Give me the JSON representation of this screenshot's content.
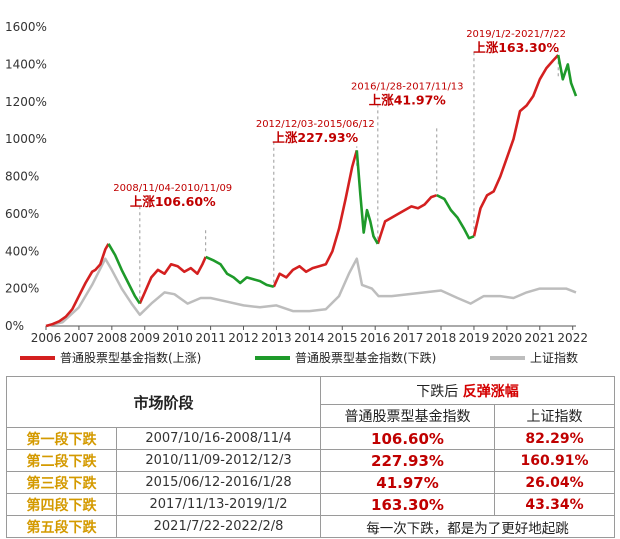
{
  "chart_data": {
    "type": "line",
    "x_ticks": [
      "2006",
      "2007",
      "2008",
      "2009",
      "2010",
      "2011",
      "2012",
      "2013",
      "2014",
      "2015",
      "2016",
      "2017",
      "2018",
      "2019",
      "2020",
      "2021",
      "2022"
    ],
    "y_ticks": [
      "0%",
      "200%",
      "400%",
      "600%",
      "800%",
      "1000%",
      "1200%",
      "1400%",
      "1600%"
    ],
    "ylim": [
      0,
      1600
    ],
    "xlim": [
      2006,
      2022.1
    ],
    "colors": {
      "rise": "#d42020",
      "fall": "#1e9a2a",
      "sh": "#bdbdbd"
    },
    "series": [
      {
        "name": "普通股票型基金指数(上涨)",
        "segments": [
          [
            [
              2006.0,
              0
            ],
            [
              2006.2,
              10
            ],
            [
              2006.4,
              25
            ],
            [
              2006.6,
              50
            ],
            [
              2006.8,
              90
            ],
            [
              2007.0,
              160
            ],
            [
              2007.2,
              230
            ],
            [
              2007.4,
              290
            ],
            [
              2007.5,
              300
            ],
            [
              2007.65,
              330
            ],
            [
              2007.8,
              410
            ],
            [
              2007.9,
              440
            ]
          ],
          [
            [
              2008.85,
              120
            ],
            [
              2009.0,
              180
            ],
            [
              2009.2,
              260
            ],
            [
              2009.4,
              300
            ],
            [
              2009.6,
              280
            ],
            [
              2009.8,
              330
            ],
            [
              2010.0,
              320
            ],
            [
              2010.2,
              290
            ],
            [
              2010.4,
              310
            ],
            [
              2010.6,
              280
            ],
            [
              2010.75,
              330
            ],
            [
              2010.85,
              370
            ]
          ],
          [
            [
              2012.92,
              210
            ],
            [
              2013.1,
              280
            ],
            [
              2013.3,
              260
            ],
            [
              2013.5,
              300
            ],
            [
              2013.7,
              320
            ],
            [
              2013.9,
              290
            ],
            [
              2014.1,
              310
            ],
            [
              2014.3,
              320
            ],
            [
              2014.5,
              330
            ],
            [
              2014.7,
              400
            ],
            [
              2014.9,
              520
            ],
            [
              2015.1,
              680
            ],
            [
              2015.3,
              850
            ],
            [
              2015.44,
              940
            ]
          ],
          [
            [
              2016.08,
              440
            ],
            [
              2016.3,
              560
            ],
            [
              2016.5,
              580
            ],
            [
              2016.7,
              600
            ],
            [
              2016.9,
              620
            ],
            [
              2017.1,
              640
            ],
            [
              2017.3,
              630
            ],
            [
              2017.5,
              650
            ],
            [
              2017.7,
              690
            ],
            [
              2017.87,
              700
            ]
          ],
          [
            [
              2019.0,
              480
            ],
            [
              2019.2,
              630
            ],
            [
              2019.4,
              700
            ],
            [
              2019.6,
              720
            ],
            [
              2019.8,
              800
            ],
            [
              2020.0,
              900
            ],
            [
              2020.2,
              1000
            ],
            [
              2020.4,
              1150
            ],
            [
              2020.6,
              1180
            ],
            [
              2020.8,
              1230
            ],
            [
              2021.0,
              1320
            ],
            [
              2021.2,
              1380
            ],
            [
              2021.4,
              1420
            ],
            [
              2021.56,
              1450
            ]
          ]
        ]
      },
      {
        "name": "普通股票型基金指数(下跌)",
        "segments": [
          [
            [
              2007.9,
              440
            ],
            [
              2008.1,
              380
            ],
            [
              2008.3,
              300
            ],
            [
              2008.5,
              230
            ],
            [
              2008.7,
              160
            ],
            [
              2008.85,
              120
            ]
          ],
          [
            [
              2010.85,
              370
            ],
            [
              2011.1,
              350
            ],
            [
              2011.3,
              330
            ],
            [
              2011.5,
              280
            ],
            [
              2011.7,
              260
            ],
            [
              2011.9,
              230
            ],
            [
              2012.1,
              260
            ],
            [
              2012.3,
              250
            ],
            [
              2012.5,
              240
            ],
            [
              2012.7,
              220
            ],
            [
              2012.92,
              210
            ]
          ],
          [
            [
              2015.44,
              940
            ],
            [
              2015.55,
              700
            ],
            [
              2015.65,
              500
            ],
            [
              2015.75,
              620
            ],
            [
              2015.85,
              560
            ],
            [
              2015.95,
              480
            ],
            [
              2016.08,
              440
            ]
          ],
          [
            [
              2017.87,
              700
            ],
            [
              2018.1,
              680
            ],
            [
              2018.3,
              620
            ],
            [
              2018.5,
              580
            ],
            [
              2018.7,
              520
            ],
            [
              2018.85,
              470
            ],
            [
              2019.0,
              480
            ]
          ],
          [
            [
              2021.56,
              1450
            ],
            [
              2021.7,
              1320
            ],
            [
              2021.85,
              1400
            ],
            [
              2021.95,
              1300
            ],
            [
              2022.1,
              1230
            ]
          ]
        ]
      },
      {
        "name": "上证指数",
        "segments": [
          [
            [
              2006.0,
              0
            ],
            [
              2006.5,
              20
            ],
            [
              2007.0,
              100
            ],
            [
              2007.4,
              220
            ],
            [
              2007.8,
              360
            ],
            [
              2008.0,
              300
            ],
            [
              2008.3,
              200
            ],
            [
              2008.6,
              120
            ],
            [
              2008.85,
              60
            ],
            [
              2009.2,
              120
            ],
            [
              2009.6,
              180
            ],
            [
              2009.9,
              170
            ],
            [
              2010.3,
              120
            ],
            [
              2010.7,
              150
            ],
            [
              2011.0,
              150
            ],
            [
              2011.5,
              130
            ],
            [
              2012.0,
              110
            ],
            [
              2012.5,
              100
            ],
            [
              2013.0,
              110
            ],
            [
              2013.5,
              80
            ],
            [
              2014.0,
              80
            ],
            [
              2014.5,
              90
            ],
            [
              2014.9,
              160
            ],
            [
              2015.2,
              280
            ],
            [
              2015.44,
              360
            ],
            [
              2015.6,
              220
            ],
            [
              2015.9,
              200
            ],
            [
              2016.1,
              160
            ],
            [
              2016.5,
              160
            ],
            [
              2017.0,
              170
            ],
            [
              2017.5,
              180
            ],
            [
              2018.0,
              190
            ],
            [
              2018.5,
              150
            ],
            [
              2018.9,
              120
            ],
            [
              2019.3,
              160
            ],
            [
              2019.8,
              160
            ],
            [
              2020.2,
              150
            ],
            [
              2020.6,
              180
            ],
            [
              2021.0,
              200
            ],
            [
              2021.5,
              200
            ],
            [
              2021.8,
              200
            ],
            [
              2022.1,
              180
            ]
          ]
        ]
      }
    ],
    "annotations": [
      {
        "x": 2008.85,
        "y_gain": 673,
        "date": "2008/11/04-2010/11/09",
        "gain": "上涨106.60%"
      },
      {
        "x": 2012.92,
        "y_gain": 1018,
        "date": "2012/12/03-2015/06/12",
        "gain": "上涨227.93%"
      },
      {
        "x": 2016.08,
        "y_gain": 1218,
        "date": "2016/1/28-2017/11/13",
        "gain": "上涨41.97%"
      },
      {
        "x": 2019.0,
        "y_gain": 1497,
        "date": "2019/1/2-2021/7/22",
        "gain": "上涨163.30%"
      }
    ],
    "legend": [
      "普通股票型基金指数(上涨)",
      "普通股票型基金指数(下跌)",
      "上证指数"
    ]
  },
  "table": {
    "header_market": "市场阶段",
    "header_after_prefix": "下跌后",
    "header_after_em": "反弹涨幅",
    "header_col_fund": "普通股票型基金指数",
    "header_col_sh": "上证指数",
    "rows": [
      {
        "name": "第一段下跌",
        "period": "2007/10/16-2008/11/4",
        "fund": "106.60%",
        "sh": "82.29%"
      },
      {
        "name": "第二段下跌",
        "period": "2010/11/09-2012/12/3",
        "fund": "227.93%",
        "sh": "160.91%"
      },
      {
        "name": "第三段下跌",
        "period": "2015/06/12-2016/1/28",
        "fund": "41.97%",
        "sh": "26.04%"
      },
      {
        "name": "第四段下跌",
        "period": "2017/11/13-2019/1/2",
        "fund": "163.30%",
        "sh": "43.34%"
      }
    ],
    "last_row": {
      "name": "第五段下跌",
      "period": "2021/7/22-2022/2/8",
      "note": "每一次下跌，都是为了更好地起跳"
    }
  }
}
